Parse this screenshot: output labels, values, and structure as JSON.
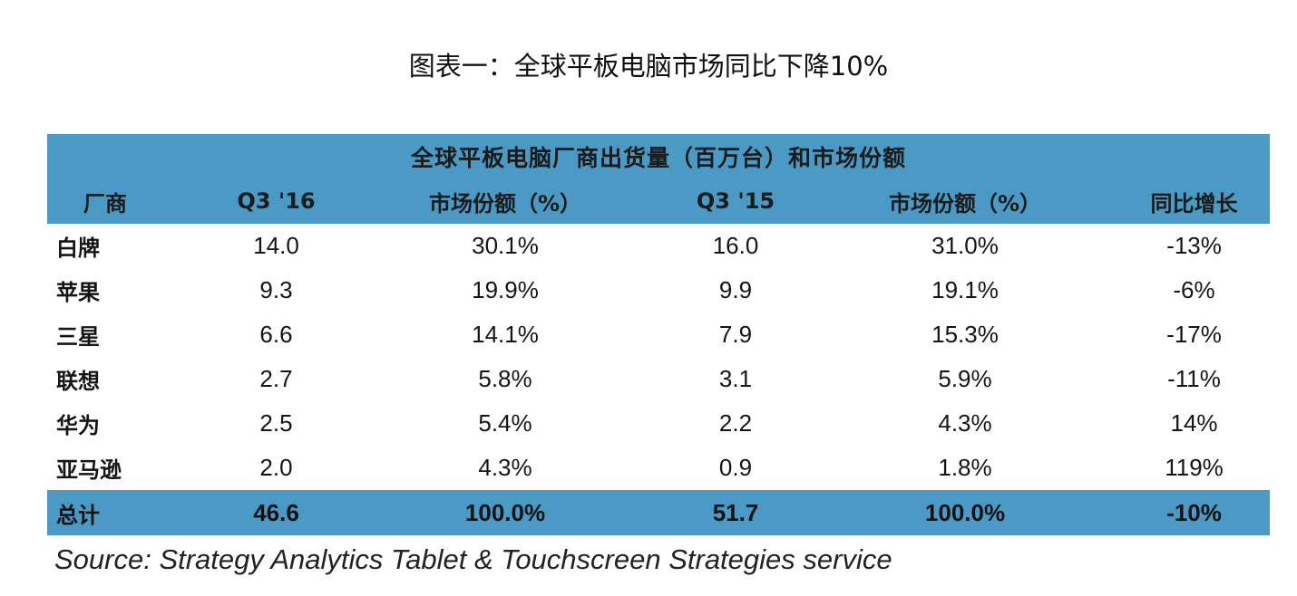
{
  "page_title": "图表一：全球平板电脑市场同比下降10%",
  "table": {
    "caption": "全球平板电脑厂商出货量（百万台）和市场份额",
    "headers": [
      "厂商",
      "Q3 '16",
      "市场份额（%）",
      "Q3 '15",
      "市场份额（%）",
      "同比增长"
    ],
    "rows": [
      [
        "白牌",
        "14.0",
        "30.1%",
        "16.0",
        "31.0%",
        "-13%"
      ],
      [
        "苹果",
        "9.3",
        "19.9%",
        "9.9",
        "19.1%",
        "-6%"
      ],
      [
        "三星",
        "6.6",
        "14.1%",
        "7.9",
        "15.3%",
        "-17%"
      ],
      [
        "联想",
        "2.7",
        "5.8%",
        "3.1",
        "5.9%",
        "-11%"
      ],
      [
        "华为",
        "2.5",
        "5.4%",
        "2.2",
        "4.3%",
        "14%"
      ],
      [
        "亚马逊",
        "2.0",
        "4.3%",
        "0.9",
        "1.8%",
        "119%"
      ]
    ],
    "total": [
      "总计",
      "46.6",
      "100.0%",
      "51.7",
      "100.0%",
      "-10%"
    ]
  },
  "source": "Source:  Strategy Analytics Tablet & Touchscreen Strategies service",
  "colors": {
    "header_bg": "#4a9ac5",
    "text": "#111111"
  },
  "chart_data": {
    "type": "table",
    "title": "全球平板电脑厂商出货量（百万台）和市场份额",
    "columns": [
      "厂商",
      "Q3 '16",
      "市场份额（%）",
      "Q3 '15",
      "市场份额（%）",
      "同比增长"
    ],
    "rows": [
      {
        "vendor": "白牌",
        "q3_16": 14.0,
        "share_16": 30.1,
        "q3_15": 16.0,
        "share_15": 31.0,
        "yoy": -13
      },
      {
        "vendor": "苹果",
        "q3_16": 9.3,
        "share_16": 19.9,
        "q3_15": 9.9,
        "share_15": 19.1,
        "yoy": -6
      },
      {
        "vendor": "三星",
        "q3_16": 6.6,
        "share_16": 14.1,
        "q3_15": 7.9,
        "share_15": 15.3,
        "yoy": -17
      },
      {
        "vendor": "联想",
        "q3_16": 2.7,
        "share_16": 5.8,
        "q3_15": 3.1,
        "share_15": 5.9,
        "yoy": -11
      },
      {
        "vendor": "华为",
        "q3_16": 2.5,
        "share_16": 5.4,
        "q3_15": 2.2,
        "share_15": 4.3,
        "yoy": 14
      },
      {
        "vendor": "亚马逊",
        "q3_16": 2.0,
        "share_16": 4.3,
        "q3_15": 0.9,
        "share_15": 1.8,
        "yoy": 119
      }
    ],
    "total": {
      "vendor": "总计",
      "q3_16": 46.6,
      "share_16": 100.0,
      "q3_15": 51.7,
      "share_15": 100.0,
      "yoy": -10
    }
  }
}
